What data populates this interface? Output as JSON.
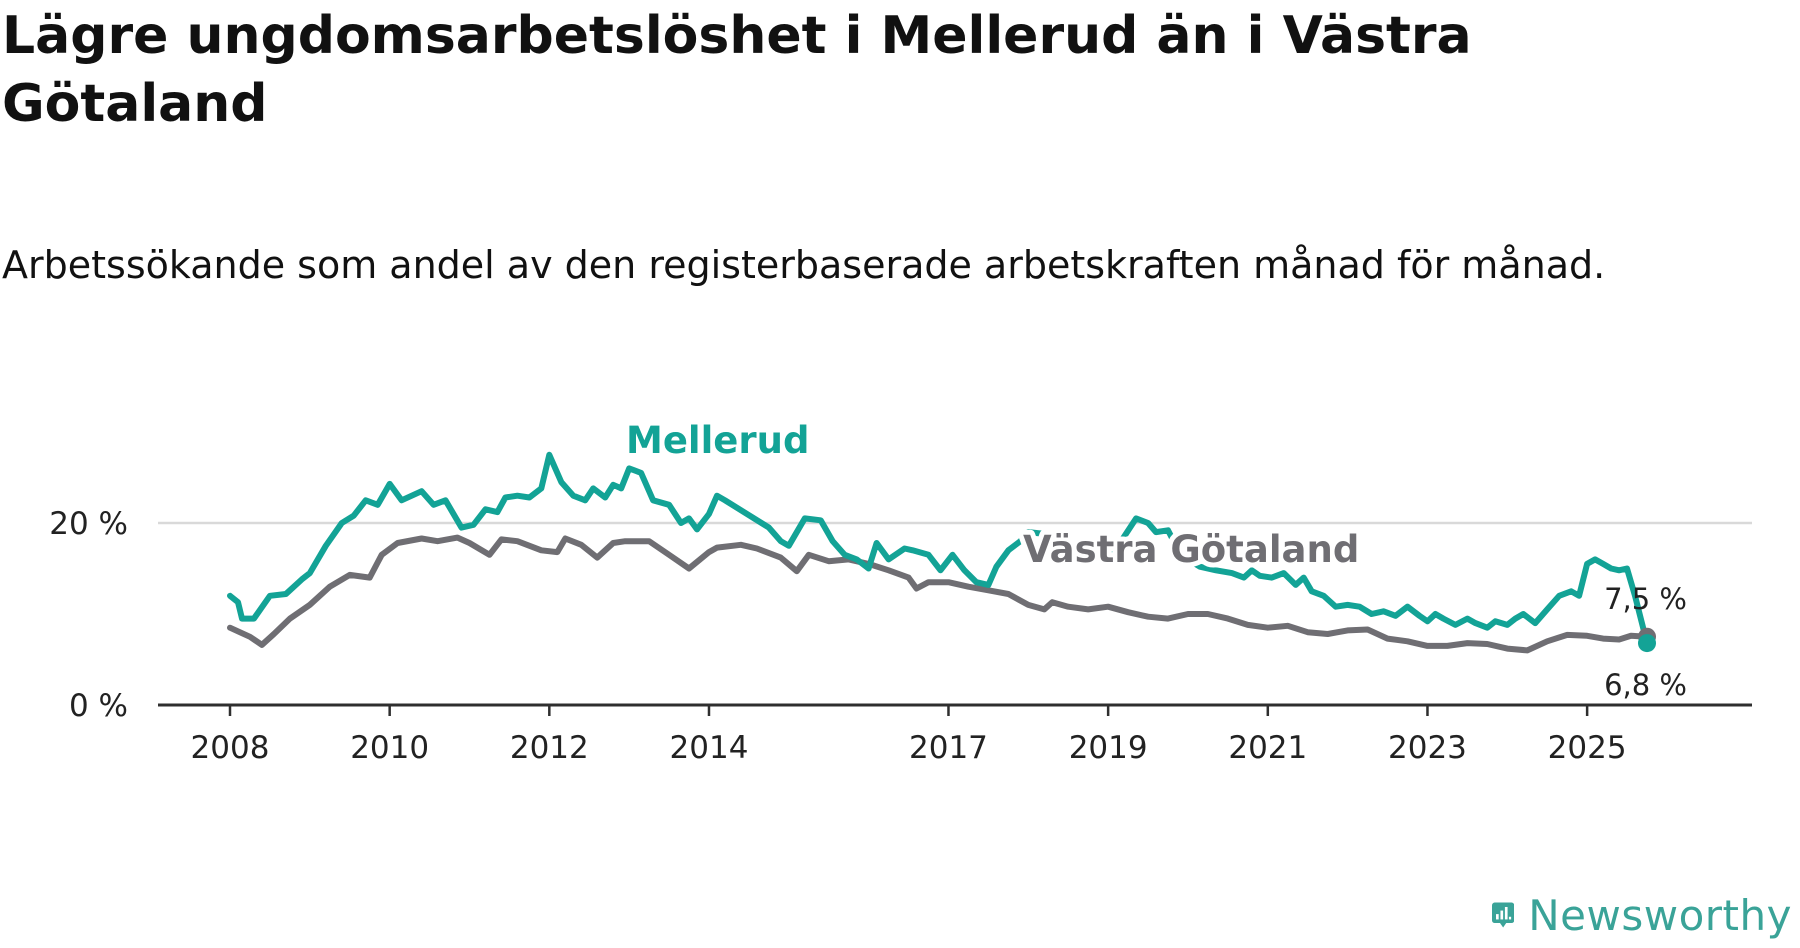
{
  "title": "Lägre ungdomsarbetslöshet i Mellerud än i Västra Götaland",
  "subtitle": "Arbetssökande som andel av den registerbaserade arbetskraften månad för månad.",
  "brand": {
    "name": "Newsworthy",
    "color": "#3aa398"
  },
  "chart_data": {
    "type": "line",
    "title": "Lägre ungdomsarbetslöshet i Mellerud än i Västra Götaland",
    "subtitle": "Arbetssökande som andel av den registerbaserade arbetskraften månad för månad.",
    "xlabel": "",
    "ylabel": "",
    "x_range": [
      2008,
      2025.75
    ],
    "ylim": [
      0,
      27
    ],
    "y_ticks": [
      {
        "value": 0,
        "label": "0 %"
      },
      {
        "value": 20,
        "label": "20 %"
      }
    ],
    "x_ticks": [
      {
        "value": 2008,
        "label": "2008"
      },
      {
        "value": 2010,
        "label": "2010"
      },
      {
        "value": 2012,
        "label": "2012"
      },
      {
        "value": 2014,
        "label": "2014"
      },
      {
        "value": 2017,
        "label": "2017"
      },
      {
        "value": 2019,
        "label": "2019"
      },
      {
        "value": 2021,
        "label": "2021"
      },
      {
        "value": 2023,
        "label": "2023"
      },
      {
        "value": 2025,
        "label": "2025"
      }
    ],
    "grid": "horizontal at 20 %",
    "series": [
      {
        "name": "Västra Götaland",
        "color": "#6f6e73",
        "label": "Västra Götaland",
        "end_label": "7,5 %",
        "points": [
          [
            2008.0,
            8.5
          ],
          [
            2008.25,
            7.5
          ],
          [
            2008.4,
            6.6
          ],
          [
            2008.55,
            7.8
          ],
          [
            2008.75,
            9.5
          ],
          [
            2009.0,
            11.0
          ],
          [
            2009.25,
            13.0
          ],
          [
            2009.5,
            14.3
          ],
          [
            2009.75,
            14.0
          ],
          [
            2009.9,
            16.5
          ],
          [
            2010.1,
            17.8
          ],
          [
            2010.4,
            18.3
          ],
          [
            2010.6,
            18.0
          ],
          [
            2010.85,
            18.4
          ],
          [
            2011.0,
            17.8
          ],
          [
            2011.25,
            16.5
          ],
          [
            2011.4,
            18.2
          ],
          [
            2011.6,
            18.0
          ],
          [
            2011.9,
            17.0
          ],
          [
            2012.1,
            16.8
          ],
          [
            2012.2,
            18.3
          ],
          [
            2012.4,
            17.6
          ],
          [
            2012.6,
            16.2
          ],
          [
            2012.8,
            17.8
          ],
          [
            2012.95,
            18.0
          ],
          [
            2013.25,
            18.0
          ],
          [
            2013.5,
            16.5
          ],
          [
            2013.75,
            15.0
          ],
          [
            2014.0,
            16.8
          ],
          [
            2014.1,
            17.3
          ],
          [
            2014.4,
            17.6
          ],
          [
            2014.6,
            17.2
          ],
          [
            2014.9,
            16.2
          ],
          [
            2015.1,
            14.7
          ],
          [
            2015.25,
            16.5
          ],
          [
            2015.5,
            15.8
          ],
          [
            2015.75,
            16.0
          ],
          [
            2016.0,
            15.5
          ],
          [
            2016.25,
            14.8
          ],
          [
            2016.5,
            14.0
          ],
          [
            2016.6,
            12.8
          ],
          [
            2016.75,
            13.5
          ],
          [
            2017.0,
            13.5
          ],
          [
            2017.25,
            13.0
          ],
          [
            2017.5,
            12.6
          ],
          [
            2017.75,
            12.2
          ],
          [
            2018.0,
            11.0
          ],
          [
            2018.2,
            10.5
          ],
          [
            2018.3,
            11.3
          ],
          [
            2018.5,
            10.8
          ],
          [
            2018.75,
            10.5
          ],
          [
            2019.0,
            10.8
          ],
          [
            2019.25,
            10.2
          ],
          [
            2019.5,
            9.7
          ],
          [
            2019.75,
            9.5
          ],
          [
            2020.0,
            10.0
          ],
          [
            2020.25,
            10.0
          ],
          [
            2020.5,
            9.5
          ],
          [
            2020.75,
            8.8
          ],
          [
            2021.0,
            8.5
          ],
          [
            2021.25,
            8.7
          ],
          [
            2021.5,
            8.0
          ],
          [
            2021.75,
            7.8
          ],
          [
            2022.0,
            8.2
          ],
          [
            2022.25,
            8.3
          ],
          [
            2022.5,
            7.3
          ],
          [
            2022.75,
            7.0
          ],
          [
            2023.0,
            6.5
          ],
          [
            2023.25,
            6.5
          ],
          [
            2023.5,
            6.8
          ],
          [
            2023.75,
            6.7
          ],
          [
            2024.0,
            6.2
          ],
          [
            2024.25,
            6.0
          ],
          [
            2024.5,
            7.0
          ],
          [
            2024.75,
            7.7
          ],
          [
            2025.0,
            7.6
          ],
          [
            2025.2,
            7.3
          ],
          [
            2025.4,
            7.2
          ],
          [
            2025.55,
            7.6
          ],
          [
            2025.75,
            7.5
          ]
        ]
      },
      {
        "name": "Mellerud",
        "color": "#13a396",
        "label": "Mellerud",
        "end_label": "6,8 %",
        "points": [
          [
            2008.0,
            12.0
          ],
          [
            2008.1,
            11.3
          ],
          [
            2008.15,
            9.5
          ],
          [
            2008.3,
            9.5
          ],
          [
            2008.5,
            12.0
          ],
          [
            2008.7,
            12.2
          ],
          [
            2008.9,
            13.8
          ],
          [
            2009.0,
            14.5
          ],
          [
            2009.2,
            17.5
          ],
          [
            2009.4,
            20.0
          ],
          [
            2009.55,
            20.8
          ],
          [
            2009.7,
            22.5
          ],
          [
            2009.85,
            22.0
          ],
          [
            2010.0,
            24.3
          ],
          [
            2010.15,
            22.5
          ],
          [
            2010.4,
            23.5
          ],
          [
            2010.55,
            22.0
          ],
          [
            2010.7,
            22.5
          ],
          [
            2010.9,
            19.5
          ],
          [
            2011.05,
            19.8
          ],
          [
            2011.2,
            21.5
          ],
          [
            2011.35,
            21.2
          ],
          [
            2011.45,
            22.8
          ],
          [
            2011.6,
            23.0
          ],
          [
            2011.75,
            22.8
          ],
          [
            2011.9,
            23.8
          ],
          [
            2012.0,
            27.5
          ],
          [
            2012.15,
            24.5
          ],
          [
            2012.3,
            23.0
          ],
          [
            2012.45,
            22.5
          ],
          [
            2012.55,
            23.8
          ],
          [
            2012.7,
            22.8
          ],
          [
            2012.8,
            24.2
          ],
          [
            2012.9,
            23.8
          ],
          [
            2013.0,
            26.0
          ],
          [
            2013.15,
            25.5
          ],
          [
            2013.3,
            22.5
          ],
          [
            2013.5,
            22.0
          ],
          [
            2013.65,
            20.0
          ],
          [
            2013.75,
            20.5
          ],
          [
            2013.85,
            19.3
          ],
          [
            2014.0,
            21.0
          ],
          [
            2014.1,
            23.0
          ],
          [
            2014.2,
            22.5
          ],
          [
            2014.75,
            19.5
          ],
          [
            2014.9,
            18.0
          ],
          [
            2015.0,
            17.5
          ],
          [
            2015.2,
            20.5
          ],
          [
            2015.4,
            20.3
          ],
          [
            2015.55,
            18.0
          ],
          [
            2015.7,
            16.5
          ],
          [
            2015.85,
            16.0
          ],
          [
            2016.0,
            15.0
          ],
          [
            2016.1,
            17.8
          ],
          [
            2016.25,
            16.0
          ],
          [
            2016.45,
            17.2
          ],
          [
            2016.55,
            17.0
          ],
          [
            2016.75,
            16.5
          ],
          [
            2016.9,
            14.8
          ],
          [
            2017.05,
            16.5
          ],
          [
            2017.2,
            14.8
          ],
          [
            2017.35,
            13.5
          ],
          [
            2017.5,
            13.2
          ],
          [
            2017.6,
            15.2
          ],
          [
            2017.75,
            17.0
          ],
          [
            2017.9,
            18.0
          ],
          [
            2018.0,
            19.0
          ],
          [
            2018.2,
            18.8
          ],
          [
            2018.35,
            18.5
          ],
          [
            2018.55,
            17.5
          ],
          [
            2018.7,
            16.5
          ],
          [
            2018.85,
            17.5
          ],
          [
            2019.0,
            17.0
          ],
          [
            2019.1,
            17.2
          ],
          [
            2019.2,
            18.5
          ],
          [
            2019.35,
            20.5
          ],
          [
            2019.5,
            20.0
          ],
          [
            2019.6,
            19.0
          ],
          [
            2019.75,
            19.2
          ],
          [
            2019.85,
            17.5
          ],
          [
            2020.0,
            16.0
          ],
          [
            2020.15,
            15.2
          ],
          [
            2020.35,
            14.8
          ],
          [
            2020.55,
            14.5
          ],
          [
            2020.7,
            14.0
          ],
          [
            2020.8,
            14.8
          ],
          [
            2020.9,
            14.2
          ],
          [
            2021.05,
            14.0
          ],
          [
            2021.2,
            14.5
          ],
          [
            2021.35,
            13.2
          ],
          [
            2021.45,
            14.0
          ],
          [
            2021.55,
            12.5
          ],
          [
            2021.7,
            12.0
          ],
          [
            2021.85,
            10.8
          ],
          [
            2022.0,
            11.0
          ],
          [
            2022.15,
            10.8
          ],
          [
            2022.3,
            10.0
          ],
          [
            2022.45,
            10.3
          ],
          [
            2022.6,
            9.8
          ],
          [
            2022.75,
            10.8
          ],
          [
            2022.9,
            9.8
          ],
          [
            2023.0,
            9.2
          ],
          [
            2023.1,
            10.0
          ],
          [
            2023.2,
            9.5
          ],
          [
            2023.35,
            8.8
          ],
          [
            2023.5,
            9.5
          ],
          [
            2023.6,
            9.0
          ],
          [
            2023.75,
            8.5
          ],
          [
            2023.85,
            9.2
          ],
          [
            2024.0,
            8.8
          ],
          [
            2024.1,
            9.5
          ],
          [
            2024.2,
            10.0
          ],
          [
            2024.35,
            9.0
          ],
          [
            2024.5,
            10.5
          ],
          [
            2024.65,
            12.0
          ],
          [
            2024.8,
            12.5
          ],
          [
            2024.9,
            12.0
          ],
          [
            2025.0,
            15.5
          ],
          [
            2025.1,
            16.0
          ],
          [
            2025.2,
            15.5
          ],
          [
            2025.3,
            15.0
          ],
          [
            2025.4,
            14.8
          ],
          [
            2025.5,
            15.0
          ],
          [
            2025.6,
            12.0
          ],
          [
            2025.75,
            6.8
          ]
        ]
      }
    ]
  }
}
